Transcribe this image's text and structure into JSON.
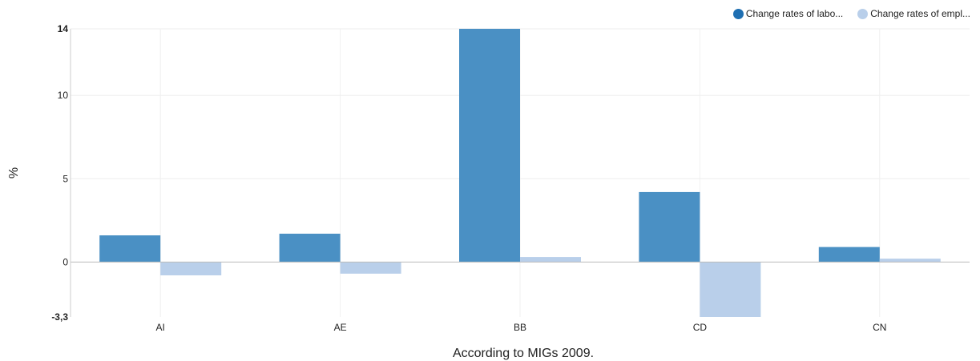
{
  "chart_data": {
    "type": "bar",
    "categories": [
      "AI",
      "AE",
      "BB",
      "CD",
      "CN"
    ],
    "series": [
      {
        "name": "Change rates of labo...",
        "color": "#4a90c4",
        "values": [
          1.6,
          1.7,
          14.0,
          4.2,
          0.9
        ]
      },
      {
        "name": "Change rates of empl...",
        "color": "#b9cfea",
        "values": [
          -0.8,
          -0.7,
          0.3,
          -3.3,
          0.2
        ]
      }
    ],
    "xlabel": "According to MIGs 2009.",
    "ylabel": "%",
    "ylim": [
      -3.3,
      14
    ],
    "yticks": [
      {
        "value": -3.3,
        "label": "-3,3",
        "bold": true
      },
      {
        "value": 0,
        "label": "0",
        "bold": false
      },
      {
        "value": 5,
        "label": "5",
        "bold": false
      },
      {
        "value": 10,
        "label": "10",
        "bold": false
      },
      {
        "value": 14,
        "label": "14",
        "bold": true
      }
    ],
    "grid": true,
    "legend": "top-right"
  },
  "legend_colors": {
    "series1": "#1f6fb2",
    "series2": "#b9cfea"
  }
}
